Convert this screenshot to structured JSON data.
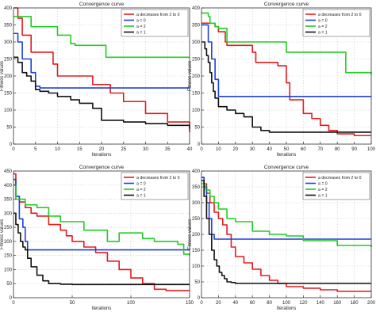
{
  "chart_data": [
    {
      "type": "line",
      "title": "Convergence curve",
      "xlabel": "Iterations",
      "ylabel": "Fitness values",
      "xlim": [
        0,
        40
      ],
      "ylim": [
        0,
        400
      ],
      "xticks": [
        0,
        5,
        10,
        15,
        20,
        25,
        30,
        35,
        40
      ],
      "yticks": [
        0,
        50,
        100,
        150,
        200,
        250,
        300,
        350,
        400
      ],
      "grid": true,
      "legend": "top-right",
      "series": [
        {
          "name": "a decreases from 2 to 0",
          "color": "#e41a1c",
          "x": [
            0,
            1,
            2,
            4,
            5,
            9,
            10,
            18,
            22,
            25,
            30,
            35,
            40
          ],
          "y": [
            400,
            370,
            320,
            270,
            270,
            235,
            200,
            175,
            150,
            125,
            90,
            65,
            35
          ]
        },
        {
          "name": "a = 0",
          "color": "#1f3fd9",
          "x": [
            0,
            1,
            2,
            3,
            4,
            5,
            6,
            40
          ],
          "y": [
            325,
            300,
            250,
            250,
            210,
            170,
            165,
            165
          ]
        },
        {
          "name": "a = 2",
          "color": "#22cc22",
          "x": [
            0,
            1,
            2,
            4,
            5,
            10,
            13,
            14,
            20,
            21,
            40
          ],
          "y": [
            375,
            375,
            375,
            345,
            345,
            320,
            295,
            290,
            290,
            255,
            255
          ]
        },
        {
          "name": "a = 1",
          "color": "#111111",
          "x": [
            0,
            1,
            2,
            3,
            4,
            5,
            6,
            8,
            10,
            13,
            15,
            18,
            20,
            25,
            30,
            35,
            40
          ],
          "y": [
            255,
            240,
            210,
            200,
            185,
            160,
            155,
            150,
            140,
            130,
            120,
            105,
            70,
            65,
            60,
            55,
            45
          ]
        }
      ]
    },
    {
      "type": "line",
      "title": "Convergence curve",
      "xlabel": "Iterations",
      "ylabel": "Fitness values",
      "xlim": [
        0,
        100
      ],
      "ylim": [
        0,
        400
      ],
      "xticks": [
        0,
        10,
        20,
        30,
        40,
        50,
        60,
        70,
        80,
        90,
        100
      ],
      "yticks": [
        0,
        50,
        100,
        150,
        200,
        250,
        300,
        350,
        400
      ],
      "grid": true,
      "legend": "top-right",
      "series": [
        {
          "name": "a decreases from 2 to 0",
          "color": "#e41a1c",
          "x": [
            0,
            2,
            5,
            8,
            10,
            14,
            15,
            30,
            32,
            45,
            50,
            52,
            60,
            65,
            70,
            75,
            80,
            90,
            100
          ],
          "y": [
            355,
            355,
            355,
            345,
            330,
            300,
            290,
            270,
            240,
            230,
            180,
            130,
            90,
            75,
            55,
            40,
            30,
            25,
            25
          ]
        },
        {
          "name": "a = 0",
          "color": "#1f3fd9",
          "x": [
            0,
            2,
            4,
            6,
            8,
            10,
            100
          ],
          "y": [
            350,
            350,
            300,
            250,
            190,
            140,
            140
          ]
        },
        {
          "name": "a = 2",
          "color": "#22cc22",
          "x": [
            0,
            4,
            5,
            8,
            10,
            15,
            25,
            35,
            50,
            80,
            85,
            100
          ],
          "y": [
            385,
            375,
            355,
            345,
            340,
            300,
            300,
            300,
            270,
            270,
            210,
            205
          ]
        },
        {
          "name": "a = 1",
          "color": "#111111",
          "x": [
            0,
            2,
            3,
            4,
            5,
            6,
            7,
            8,
            10,
            15,
            20,
            25,
            30,
            35,
            40,
            50,
            100
          ],
          "y": [
            300,
            280,
            260,
            240,
            210,
            180,
            155,
            135,
            110,
            100,
            90,
            80,
            50,
            40,
            35,
            35,
            35
          ]
        }
      ]
    },
    {
      "type": "line",
      "title": "Convergence curve",
      "xlabel": "Iterations",
      "ylabel": "Fitness values",
      "xlim": [
        0,
        150
      ],
      "ylim": [
        0,
        450
      ],
      "xticks": [
        0,
        50,
        100,
        150
      ],
      "yticks": [
        0,
        50,
        100,
        150,
        200,
        250,
        300,
        350,
        400,
        450
      ],
      "grid": true,
      "legend": "top-right",
      "series": [
        {
          "name": "a decreases from 2 to 0",
          "color": "#e41a1c",
          "x": [
            0,
            2,
            5,
            10,
            15,
            20,
            30,
            40,
            45,
            50,
            60,
            70,
            80,
            90,
            100,
            110,
            120,
            130,
            150
          ],
          "y": [
            440,
            360,
            340,
            320,
            300,
            290,
            260,
            240,
            220,
            200,
            180,
            160,
            130,
            100,
            70,
            50,
            30,
            25,
            25
          ]
        },
        {
          "name": "a = 0",
          "color": "#1f3fd9",
          "x": [
            0,
            2,
            5,
            8,
            10,
            12,
            150
          ],
          "y": [
            420,
            360,
            280,
            250,
            200,
            170,
            170
          ]
        },
        {
          "name": "a = 2",
          "color": "#22cc22",
          "x": [
            0,
            2,
            10,
            20,
            30,
            40,
            60,
            80,
            90,
            110,
            120,
            140,
            145,
            150
          ],
          "y": [
            400,
            350,
            330,
            320,
            290,
            270,
            240,
            200,
            230,
            210,
            200,
            190,
            155,
            150
          ]
        },
        {
          "name": "a = 1",
          "color": "#111111",
          "x": [
            0,
            2,
            4,
            6,
            8,
            10,
            12,
            15,
            20,
            25,
            30,
            40,
            50,
            150
          ],
          "y": [
            300,
            260,
            230,
            200,
            180,
            170,
            140,
            110,
            80,
            60,
            50,
            48,
            47,
            47
          ]
        }
      ]
    },
    {
      "type": "line",
      "title": "Convergence curve",
      "xlabel": "Iterations",
      "ylabel": "Fitness values",
      "xlim": [
        0,
        200
      ],
      "ylim": [
        0,
        400
      ],
      "xticks": [
        0,
        20,
        40,
        60,
        80,
        100,
        120,
        140,
        160,
        180,
        200
      ],
      "yticks": [
        0,
        50,
        100,
        150,
        200,
        250,
        300,
        350,
        400
      ],
      "grid": true,
      "legend": "top-right",
      "series": [
        {
          "name": "a decreases from 2 to 0",
          "color": "#e41a1c",
          "x": [
            0,
            3,
            6,
            10,
            15,
            20,
            25,
            30,
            35,
            40,
            50,
            60,
            70,
            80,
            90,
            100,
            120,
            140,
            160,
            180,
            200
          ],
          "y": [
            380,
            360,
            330,
            300,
            270,
            250,
            230,
            200,
            160,
            130,
            110,
            90,
            70,
            55,
            45,
            35,
            30,
            25,
            20,
            20,
            20
          ]
        },
        {
          "name": "a = 0",
          "color": "#1f3fd9",
          "x": [
            0,
            3,
            6,
            9,
            12,
            15,
            200
          ],
          "y": [
            380,
            350,
            300,
            250,
            200,
            185,
            185
          ]
        },
        {
          "name": "a = 2",
          "color": "#22cc22",
          "x": [
            0,
            5,
            10,
            15,
            20,
            30,
            40,
            60,
            80,
            100,
            120,
            160,
            200
          ],
          "y": [
            360,
            340,
            320,
            300,
            280,
            250,
            240,
            210,
            200,
            195,
            180,
            165,
            160
          ]
        },
        {
          "name": "a = 1",
          "color": "#111111",
          "x": [
            0,
            3,
            6,
            9,
            12,
            15,
            18,
            21,
            24,
            27,
            30,
            35,
            40,
            200
          ],
          "y": [
            370,
            320,
            250,
            200,
            150,
            120,
            100,
            80,
            70,
            60,
            50,
            48,
            45,
            45
          ]
        }
      ]
    }
  ]
}
